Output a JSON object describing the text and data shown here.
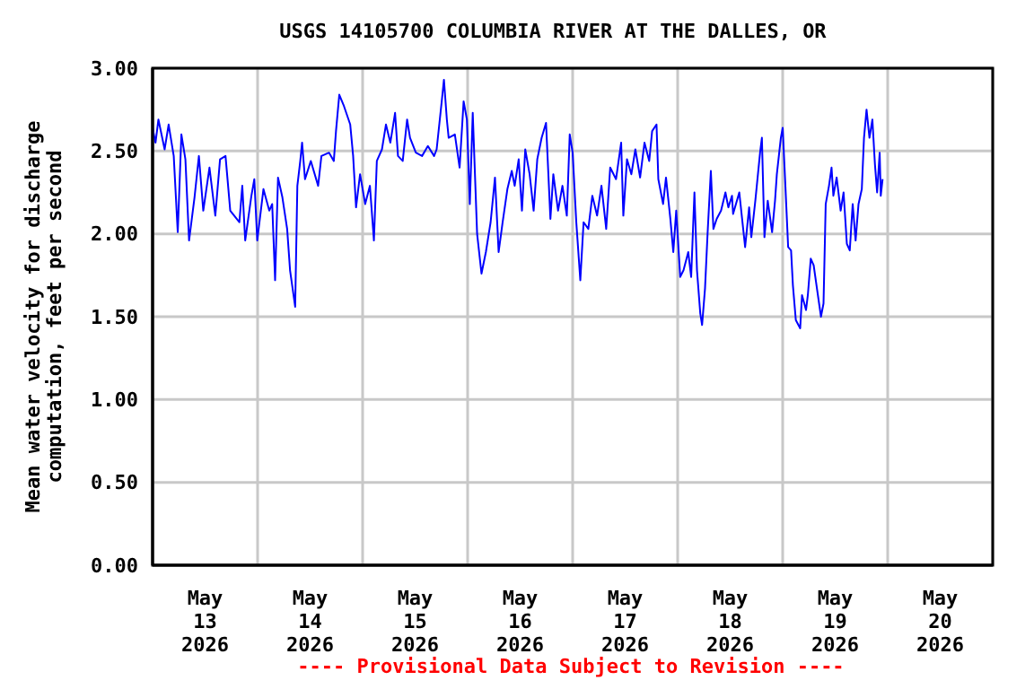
{
  "chart_data": {
    "type": "line",
    "title": "USGS 14105700 COLUMBIA RIVER AT THE DALLES, OR",
    "ylabel": "Mean water velocity for discharge\ncomputation, feet per second",
    "annotations": [
      "---- Provisional Data Subject to Revision ----"
    ],
    "color": "#0000ff",
    "grid": true,
    "xlim": [
      "2026-05-13T00:00",
      "2026-05-21T00:00"
    ],
    "xticks": [
      {
        "value": "2026-05-13T00:00",
        "label": null
      },
      {
        "value": "2026-05-13T12:00",
        "label": "May\n13\n2026"
      },
      {
        "value": "2026-05-14T00:00",
        "label": null
      },
      {
        "value": "2026-05-14T12:00",
        "label": "May\n14\n2026"
      },
      {
        "value": "2026-05-15T00:00",
        "label": null
      },
      {
        "value": "2026-05-15T12:00",
        "label": "May\n15\n2026"
      },
      {
        "value": "2026-05-16T00:00",
        "label": null
      },
      {
        "value": "2026-05-16T12:00",
        "label": "May\n16\n2026"
      },
      {
        "value": "2026-05-17T00:00",
        "label": null
      },
      {
        "value": "2026-05-17T12:00",
        "label": "May\n17\n2026"
      },
      {
        "value": "2026-05-18T00:00",
        "label": null
      },
      {
        "value": "2026-05-18T12:00",
        "label": "May\n18\n2026"
      },
      {
        "value": "2026-05-19T00:00",
        "label": null
      },
      {
        "value": "2026-05-19T12:00",
        "label": "May\n19\n2026"
      },
      {
        "value": "2026-05-20T00:00",
        "label": null
      },
      {
        "value": "2026-05-20T12:00",
        "label": "May\n20\n2026"
      },
      {
        "value": "2026-05-21T00:00",
        "label": null
      }
    ],
    "ylim": [
      0,
      3
    ],
    "yticks": [
      {
        "value": 0,
        "label": "0.00"
      },
      {
        "value": 0.5,
        "label": "0.50"
      },
      {
        "value": 1,
        "label": "1.00"
      },
      {
        "value": 1.5,
        "label": "1.50"
      },
      {
        "value": 2,
        "label": "2.00"
      },
      {
        "value": 2.5,
        "label": "2.50"
      },
      {
        "value": 3,
        "label": "3.00"
      }
    ],
    "x": [
      "2026-05-13T00:00",
      "2026-05-13T00:40",
      "2026-05-13T01:20",
      "2026-05-13T02:45",
      "2026-05-13T03:40",
      "2026-05-13T04:50",
      "2026-05-13T05:45",
      "2026-05-13T06:35",
      "2026-05-13T07:30",
      "2026-05-13T08:20",
      "2026-05-13T09:35",
      "2026-05-13T10:35",
      "2026-05-13T11:35",
      "2026-05-13T13:00",
      "2026-05-13T14:20",
      "2026-05-13T15:25",
      "2026-05-13T16:40",
      "2026-05-13T17:45",
      "2026-05-13T19:50",
      "2026-05-13T20:30",
      "2026-05-13T21:10",
      "2026-05-13T22:35",
      "2026-05-13T23:15",
      "2026-05-13T23:55",
      "2026-05-14T01:20",
      "2026-05-14T02:40",
      "2026-05-14T03:20",
      "2026-05-14T04:00",
      "2026-05-14T04:40",
      "2026-05-14T05:40",
      "2026-05-14T06:45",
      "2026-05-14T07:25",
      "2026-05-14T08:35",
      "2026-05-14T09:05",
      "2026-05-14T09:45",
      "2026-05-14T10:10",
      "2026-05-14T10:50",
      "2026-05-14T12:10",
      "2026-05-14T13:50",
      "2026-05-14T14:35",
      "2026-05-14T16:20",
      "2026-05-14T17:25",
      "2026-05-14T17:55",
      "2026-05-14T18:40",
      "2026-05-14T19:45",
      "2026-05-14T21:10",
      "2026-05-14T21:50",
      "2026-05-14T22:30",
      "2026-05-14T23:25",
      "2026-05-15T00:35",
      "2026-05-15T01:40",
      "2026-05-15T02:35",
      "2026-05-15T03:15",
      "2026-05-15T04:25",
      "2026-05-15T05:20",
      "2026-05-15T06:20",
      "2026-05-15T07:25",
      "2026-05-15T08:05",
      "2026-05-15T09:10",
      "2026-05-15T10:10",
      "2026-05-15T10:50",
      "2026-05-15T12:10",
      "2026-05-15T13:35",
      "2026-05-15T14:55",
      "2026-05-15T16:20",
      "2026-05-15T16:55",
      "2026-05-15T18:05",
      "2026-05-15T18:35",
      "2026-05-15T19:15",
      "2026-05-15T19:40",
      "2026-05-15T21:05",
      "2026-05-15T22:10",
      "2026-05-15T23:05",
      "2026-05-15T23:50",
      "2026-05-16T00:30",
      "2026-05-16T01:10",
      "2026-05-16T02:10",
      "2026-05-16T03:10",
      "2026-05-16T04:10",
      "2026-05-16T05:15",
      "2026-05-16T06:15",
      "2026-05-16T07:05",
      "2026-05-16T08:00",
      "2026-05-16T09:05",
      "2026-05-16T10:05",
      "2026-05-16T10:45",
      "2026-05-16T11:40",
      "2026-05-16T12:25",
      "2026-05-16T13:10",
      "2026-05-16T14:10",
      "2026-05-16T15:05",
      "2026-05-16T15:55",
      "2026-05-16T16:55",
      "2026-05-16T17:55",
      "2026-05-16T18:55",
      "2026-05-16T19:35",
      "2026-05-16T20:40",
      "2026-05-16T21:40",
      "2026-05-16T22:40",
      "2026-05-16T23:20",
      "2026-05-17T00:00",
      "2026-05-17T00:50",
      "2026-05-17T01:45",
      "2026-05-17T02:30",
      "2026-05-17T03:35",
      "2026-05-17T04:30",
      "2026-05-17T05:35",
      "2026-05-17T06:35",
      "2026-05-17T07:40",
      "2026-05-17T08:35",
      "2026-05-17T09:55",
      "2026-05-17T11:05",
      "2026-05-17T11:35",
      "2026-05-17T12:25",
      "2026-05-17T13:25",
      "2026-05-17T14:20",
      "2026-05-17T15:25",
      "2026-05-17T16:25",
      "2026-05-17T17:30",
      "2026-05-17T18:10",
      "2026-05-17T19:10",
      "2026-05-17T19:35",
      "2026-05-17T20:40",
      "2026-05-17T21:20",
      "2026-05-17T22:20",
      "2026-05-17T23:00",
      "2026-05-17T23:40",
      "2026-05-18T00:35",
      "2026-05-18T01:20",
      "2026-05-18T02:25",
      "2026-05-18T03:05",
      "2026-05-18T03:50",
      "2026-05-18T04:25",
      "2026-05-18T05:10",
      "2026-05-18T05:35",
      "2026-05-18T06:15",
      "2026-05-18T06:50",
      "2026-05-18T07:35",
      "2026-05-18T08:10",
      "2026-05-18T08:55",
      "2026-05-18T09:55",
      "2026-05-18T10:55",
      "2026-05-18T11:35",
      "2026-05-18T12:25",
      "2026-05-18T12:40",
      "2026-05-18T14:05",
      "2026-05-18T15:25",
      "2026-05-18T16:20",
      "2026-05-18T16:50",
      "2026-05-18T17:45",
      "2026-05-18T18:50",
      "2026-05-18T19:15",
      "2026-05-18T19:50",
      "2026-05-18T20:35",
      "2026-05-18T21:35",
      "2026-05-18T22:15",
      "2026-05-18T22:40",
      "2026-05-18T23:35",
      "2026-05-19T00:00",
      "2026-05-19T00:35",
      "2026-05-19T01:15",
      "2026-05-19T01:55",
      "2026-05-19T02:20",
      "2026-05-19T03:00",
      "2026-05-19T04:00",
      "2026-05-19T04:25",
      "2026-05-19T05:20",
      "2026-05-19T05:45",
      "2026-05-19T06:25",
      "2026-05-19T07:05",
      "2026-05-19T07:50",
      "2026-05-19T08:45",
      "2026-05-19T09:20",
      "2026-05-19T09:50",
      "2026-05-19T10:35",
      "2026-05-19T11:10",
      "2026-05-19T11:35",
      "2026-05-19T12:20",
      "2026-05-19T13:15",
      "2026-05-19T13:55",
      "2026-05-19T14:40",
      "2026-05-19T15:20",
      "2026-05-19T16:00",
      "2026-05-19T16:40",
      "2026-05-19T17:20",
      "2026-05-19T18:05",
      "2026-05-19T18:35",
      "2026-05-19T19:10",
      "2026-05-19T19:50",
      "2026-05-19T20:30",
      "2026-05-19T21:05",
      "2026-05-19T21:35",
      "2026-05-19T22:10",
      "2026-05-19T22:25",
      "2026-05-19T22:50"
    ],
    "values": [
      2.64,
      2.55,
      2.69,
      2.51,
      2.66,
      2.47,
      2.01,
      2.6,
      2.45,
      1.96,
      2.22,
      2.47,
      2.14,
      2.4,
      2.11,
      2.45,
      2.47,
      2.14,
      2.07,
      2.29,
      1.96,
      2.23,
      2.33,
      1.96,
      2.27,
      2.14,
      2.18,
      1.72,
      2.34,
      2.22,
      2.03,
      1.78,
      1.56,
      2.29,
      2.44,
      2.55,
      2.33,
      2.44,
      2.29,
      2.47,
      2.49,
      2.44,
      2.62,
      2.84,
      2.77,
      2.66,
      2.47,
      2.16,
      2.36,
      2.18,
      2.29,
      1.96,
      2.44,
      2.51,
      2.66,
      2.55,
      2.73,
      2.47,
      2.44,
      2.69,
      2.58,
      2.49,
      2.47,
      2.53,
      2.47,
      2.51,
      2.8,
      2.93,
      2.69,
      2.58,
      2.6,
      2.4,
      2.8,
      2.69,
      2.18,
      2.73,
      2.0,
      1.76,
      1.89,
      2.07,
      2.34,
      1.89,
      2.07,
      2.27,
      2.38,
      2.29,
      2.45,
      2.14,
      2.51,
      2.36,
      2.14,
      2.45,
      2.58,
      2.67,
      2.09,
      2.36,
      2.14,
      2.29,
      2.11,
      2.6,
      2.49,
      2.07,
      1.72,
      2.07,
      2.03,
      2.23,
      2.11,
      2.29,
      2.03,
      2.4,
      2.33,
      2.55,
      2.11,
      2.45,
      2.36,
      2.51,
      2.34,
      2.55,
      2.44,
      2.62,
      2.66,
      2.33,
      2.18,
      2.34,
      2.09,
      1.89,
      2.14,
      1.74,
      1.78,
      1.89,
      1.74,
      2.25,
      1.78,
      1.52,
      1.45,
      1.67,
      2.0,
      2.38,
      2.03,
      2.09,
      2.14,
      2.25,
      2.16,
      2.23,
      2.12,
      2.25,
      1.92,
      2.16,
      1.98,
      2.2,
      2.49,
      2.58,
      1.98,
      2.2,
      2.01,
      2.2,
      2.36,
      2.58,
      2.64,
      2.31,
      1.92,
      1.9,
      1.69,
      1.48,
      1.43,
      1.63,
      1.54,
      1.63,
      1.85,
      1.81,
      1.67,
      1.5,
      1.58,
      2.18,
      2.29,
      2.4,
      2.23,
      2.34,
      2.14,
      2.25,
      1.94,
      1.9,
      2.18,
      1.96,
      2.18,
      2.27,
      2.58,
      2.75,
      2.58,
      2.69,
      2.42,
      2.25,
      2.49,
      2.23,
      2.33
    ]
  }
}
